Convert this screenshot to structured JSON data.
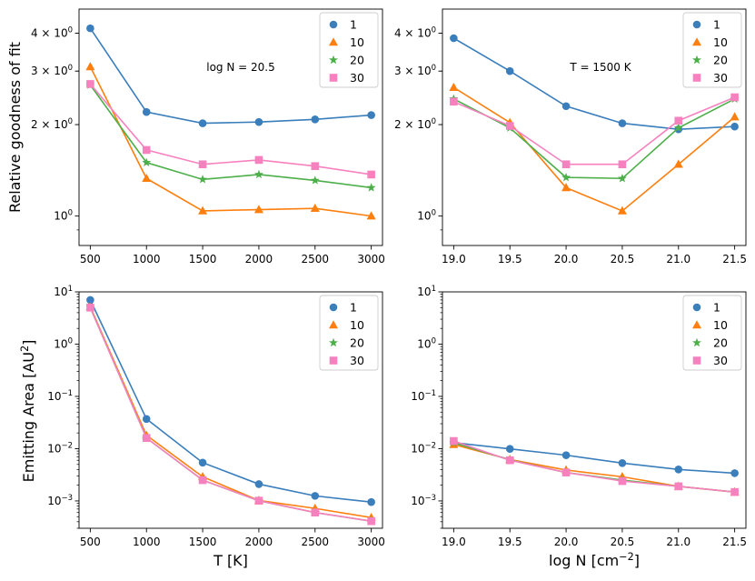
{
  "figure": {
    "ylabel_top": "Relative goodness of fit",
    "ylabel_bottom": "Emitting Area [AU$^2$]",
    "xlabel_left": "T [K]",
    "xlabel_right": "log N [cm$^{-2}$]"
  },
  "colors": {
    "1": "#3a7ebc",
    "10": "#ff7f0e",
    "20": "#4daf4a",
    "30": "#f781bf"
  },
  "chart_data": [
    {
      "id": "top-left",
      "type": "line",
      "yscale": "log",
      "annotation": "log N = 20.5",
      "x": [
        500,
        1000,
        1500,
        2000,
        2500,
        3000
      ],
      "xticks": [
        500,
        1000,
        1500,
        2000,
        2500,
        3000
      ],
      "xticklabels": [
        "500",
        "1000",
        "1500",
        "2000",
        "2500",
        "3000"
      ],
      "xlim": [
        400,
        3100
      ],
      "ylim": [
        0.8,
        4.8
      ],
      "yticks": [
        {
          "v": 1,
          "base": "10",
          "exp": "0"
        },
        {
          "v": 2,
          "base": "2 × 10",
          "exp": "0"
        },
        {
          "v": 3,
          "base": "3 × 10",
          "exp": "0"
        },
        {
          "v": 4,
          "base": "4 × 10",
          "exp": "0"
        }
      ],
      "legend_placement": "top-right",
      "series": [
        {
          "name": "1",
          "marker": "circle",
          "values": [
            4.15,
            2.2,
            2.02,
            2.04,
            2.08,
            2.15
          ]
        },
        {
          "name": "10",
          "marker": "triangle",
          "values": [
            3.1,
            1.33,
            1.04,
            1.05,
            1.06,
            1.0
          ]
        },
        {
          "name": "20",
          "marker": "star",
          "values": [
            2.7,
            1.5,
            1.32,
            1.37,
            1.31,
            1.24
          ]
        },
        {
          "name": "30",
          "marker": "square",
          "values": [
            2.72,
            1.65,
            1.48,
            1.53,
            1.46,
            1.37
          ]
        }
      ]
    },
    {
      "id": "top-right",
      "type": "line",
      "yscale": "log",
      "annotation": "T = 1500 K",
      "x": [
        19.0,
        19.5,
        20.0,
        20.5,
        21.0,
        21.5
      ],
      "xticks": [
        19.0,
        19.5,
        20.0,
        20.5,
        21.0,
        21.5
      ],
      "xticklabels": [
        "19.0",
        "19.5",
        "20.0",
        "20.5",
        "21.0",
        "21.5"
      ],
      "xlim": [
        18.9,
        21.6
      ],
      "ylim": [
        0.8,
        4.8
      ],
      "yticks": [
        {
          "v": 1,
          "base": "10",
          "exp": "0"
        },
        {
          "v": 2,
          "base": "2 × 10",
          "exp": "0"
        },
        {
          "v": 3,
          "base": "3 × 10",
          "exp": "0"
        },
        {
          "v": 4,
          "base": "4 × 10",
          "exp": "0"
        }
      ],
      "legend_placement": "top-right",
      "series": [
        {
          "name": "1",
          "marker": "circle",
          "values": [
            3.85,
            3.0,
            2.3,
            2.02,
            1.93,
            1.97
          ]
        },
        {
          "name": "10",
          "marker": "triangle",
          "values": [
            2.65,
            2.03,
            1.24,
            1.04,
            1.48,
            2.12
          ]
        },
        {
          "name": "20",
          "marker": "star",
          "values": [
            2.43,
            1.95,
            1.34,
            1.33,
            1.95,
            2.43
          ]
        },
        {
          "name": "30",
          "marker": "square",
          "values": [
            2.38,
            1.98,
            1.48,
            1.48,
            2.06,
            2.46
          ]
        }
      ]
    },
    {
      "id": "bottom-left",
      "type": "line",
      "yscale": "log",
      "x": [
        500,
        1000,
        1500,
        2000,
        2500,
        3000
      ],
      "xticks": [
        500,
        1000,
        1500,
        2000,
        2500,
        3000
      ],
      "xticklabels": [
        "500",
        "1000",
        "1500",
        "2000",
        "2500",
        "3000"
      ],
      "xlim": [
        400,
        3100
      ],
      "ylim": [
        0.0003,
        10
      ],
      "yticks": [
        {
          "v": 10,
          "base": "10",
          "exp": "1"
        },
        {
          "v": 1,
          "base": "10",
          "exp": "0"
        },
        {
          "v": 0.1,
          "base": "10",
          "exp": "−1"
        },
        {
          "v": 0.01,
          "base": "10",
          "exp": "−2"
        },
        {
          "v": 0.001,
          "base": "10",
          "exp": "−3"
        }
      ],
      "legend_placement": "top-right",
      "series": [
        {
          "name": "1",
          "marker": "circle",
          "values": [
            7.0,
            0.037,
            0.0054,
            0.0021,
            0.00125,
            0.00095
          ]
        },
        {
          "name": "10",
          "marker": "triangle",
          "values": [
            5.2,
            0.018,
            0.0029,
            0.00102,
            0.00072,
            0.00048
          ]
        },
        {
          "name": "20",
          "marker": "star",
          "values": [
            5.0,
            0.016,
            0.0025,
            0.00101,
            0.0006,
            0.00041
          ]
        },
        {
          "name": "30",
          "marker": "square",
          "values": [
            5.0,
            0.016,
            0.0025,
            0.00101,
            0.0006,
            0.00041
          ]
        }
      ]
    },
    {
      "id": "bottom-right",
      "type": "line",
      "yscale": "log",
      "x": [
        19.0,
        19.5,
        20.0,
        20.5,
        21.0,
        21.5
      ],
      "xticks": [
        19.0,
        19.5,
        20.0,
        20.5,
        21.0,
        21.5
      ],
      "xticklabels": [
        "19.0",
        "19.5",
        "20.0",
        "20.5",
        "21.0",
        "21.5"
      ],
      "xlim": [
        18.9,
        21.6
      ],
      "ylim": [
        0.0003,
        10
      ],
      "yticks": [
        {
          "v": 10,
          "base": "10",
          "exp": "1"
        },
        {
          "v": 1,
          "base": "10",
          "exp": "0"
        },
        {
          "v": 0.1,
          "base": "10",
          "exp": "−1"
        },
        {
          "v": 0.01,
          "base": "10",
          "exp": "−2"
        },
        {
          "v": 0.001,
          "base": "10",
          "exp": "−3"
        }
      ],
      "legend_placement": "top-right",
      "series": [
        {
          "name": "1",
          "marker": "circle",
          "values": [
            0.013,
            0.0099,
            0.0075,
            0.0053,
            0.004,
            0.0034
          ]
        },
        {
          "name": "10",
          "marker": "triangle",
          "values": [
            0.012,
            0.0062,
            0.0039,
            0.0029,
            0.0019,
            0.00148
          ]
        },
        {
          "name": "20",
          "marker": "star",
          "values": [
            0.013,
            0.0061,
            0.0035,
            0.0025,
            0.0019,
            0.00148
          ]
        },
        {
          "name": "30",
          "marker": "square",
          "values": [
            0.014,
            0.006,
            0.0035,
            0.0024,
            0.0019,
            0.00148
          ]
        }
      ]
    }
  ]
}
